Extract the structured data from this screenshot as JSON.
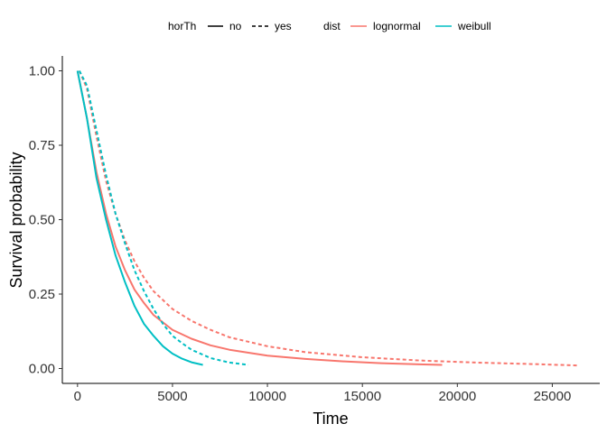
{
  "chart_data": {
    "type": "line",
    "title": "",
    "xlabel": "Time",
    "ylabel": "Survival probability",
    "xlim": [
      -800,
      27500
    ],
    "ylim": [
      -0.05,
      1.05
    ],
    "x_ticks": [
      0,
      5000,
      10000,
      15000,
      20000,
      25000
    ],
    "x_tick_labels": [
      "0",
      "5000",
      "10000",
      "15000",
      "20000",
      "25000"
    ],
    "y_ticks": [
      0,
      0.25,
      0.5,
      0.75,
      1.0
    ],
    "y_tick_labels": [
      "0.00",
      "0.25",
      "0.50",
      "0.75",
      "1.00"
    ],
    "grid": false,
    "legend_position": "top",
    "legend": {
      "linetype_title": "horTh",
      "linetype_entries": [
        {
          "label": "no",
          "dash": "solid"
        },
        {
          "label": "yes",
          "dash": "dashed"
        }
      ],
      "color_title": "dist",
      "color_entries": [
        {
          "label": "lognormal",
          "color": "#F8766D"
        },
        {
          "label": "weibull",
          "color": "#00BFC4"
        }
      ]
    },
    "series": [
      {
        "dist": "lognormal",
        "horTh": "no",
        "color": "#F8766D",
        "dash": "solid",
        "x": [
          0,
          500,
          1000,
          1500,
          2000,
          2500,
          3000,
          3500,
          4000,
          5000,
          6000,
          7000,
          8000,
          10000,
          12000,
          14000,
          16000,
          18000,
          19200
        ],
        "y": [
          1.0,
          0.84,
          0.66,
          0.52,
          0.41,
          0.33,
          0.265,
          0.22,
          0.18,
          0.13,
          0.1,
          0.078,
          0.063,
          0.043,
          0.032,
          0.024,
          0.018,
          0.014,
          0.012
        ]
      },
      {
        "dist": "lognormal",
        "horTh": "yes",
        "color": "#F8766D",
        "dash": "dashed",
        "x": [
          100,
          500,
          1000,
          1500,
          2000,
          2500,
          3000,
          3500,
          4000,
          5000,
          6000,
          7000,
          8000,
          10000,
          12000,
          15000,
          18000,
          21000,
          24000,
          26400
        ],
        "y": [
          1.0,
          0.94,
          0.78,
          0.63,
          0.52,
          0.43,
          0.36,
          0.305,
          0.26,
          0.2,
          0.16,
          0.13,
          0.105,
          0.075,
          0.055,
          0.038,
          0.027,
          0.02,
          0.015,
          0.01
        ]
      },
      {
        "dist": "weibull",
        "horTh": "no",
        "color": "#00BFC4",
        "dash": "solid",
        "x": [
          0,
          500,
          1000,
          1500,
          2000,
          2500,
          3000,
          3500,
          4000,
          4500,
          5000,
          5500,
          6000,
          6600
        ],
        "y": [
          1.0,
          0.84,
          0.64,
          0.5,
          0.38,
          0.29,
          0.21,
          0.15,
          0.11,
          0.075,
          0.05,
          0.033,
          0.021,
          0.012
        ]
      },
      {
        "dist": "weibull",
        "horTh": "yes",
        "color": "#00BFC4",
        "dash": "dashed",
        "x": [
          100,
          500,
          1000,
          1500,
          2000,
          2500,
          3000,
          3500,
          4000,
          4500,
          5000,
          5500,
          6000,
          7000,
          8000,
          9000
        ],
        "y": [
          1.0,
          0.95,
          0.8,
          0.65,
          0.52,
          0.42,
          0.33,
          0.26,
          0.2,
          0.15,
          0.11,
          0.085,
          0.063,
          0.035,
          0.02,
          0.012
        ]
      }
    ]
  }
}
